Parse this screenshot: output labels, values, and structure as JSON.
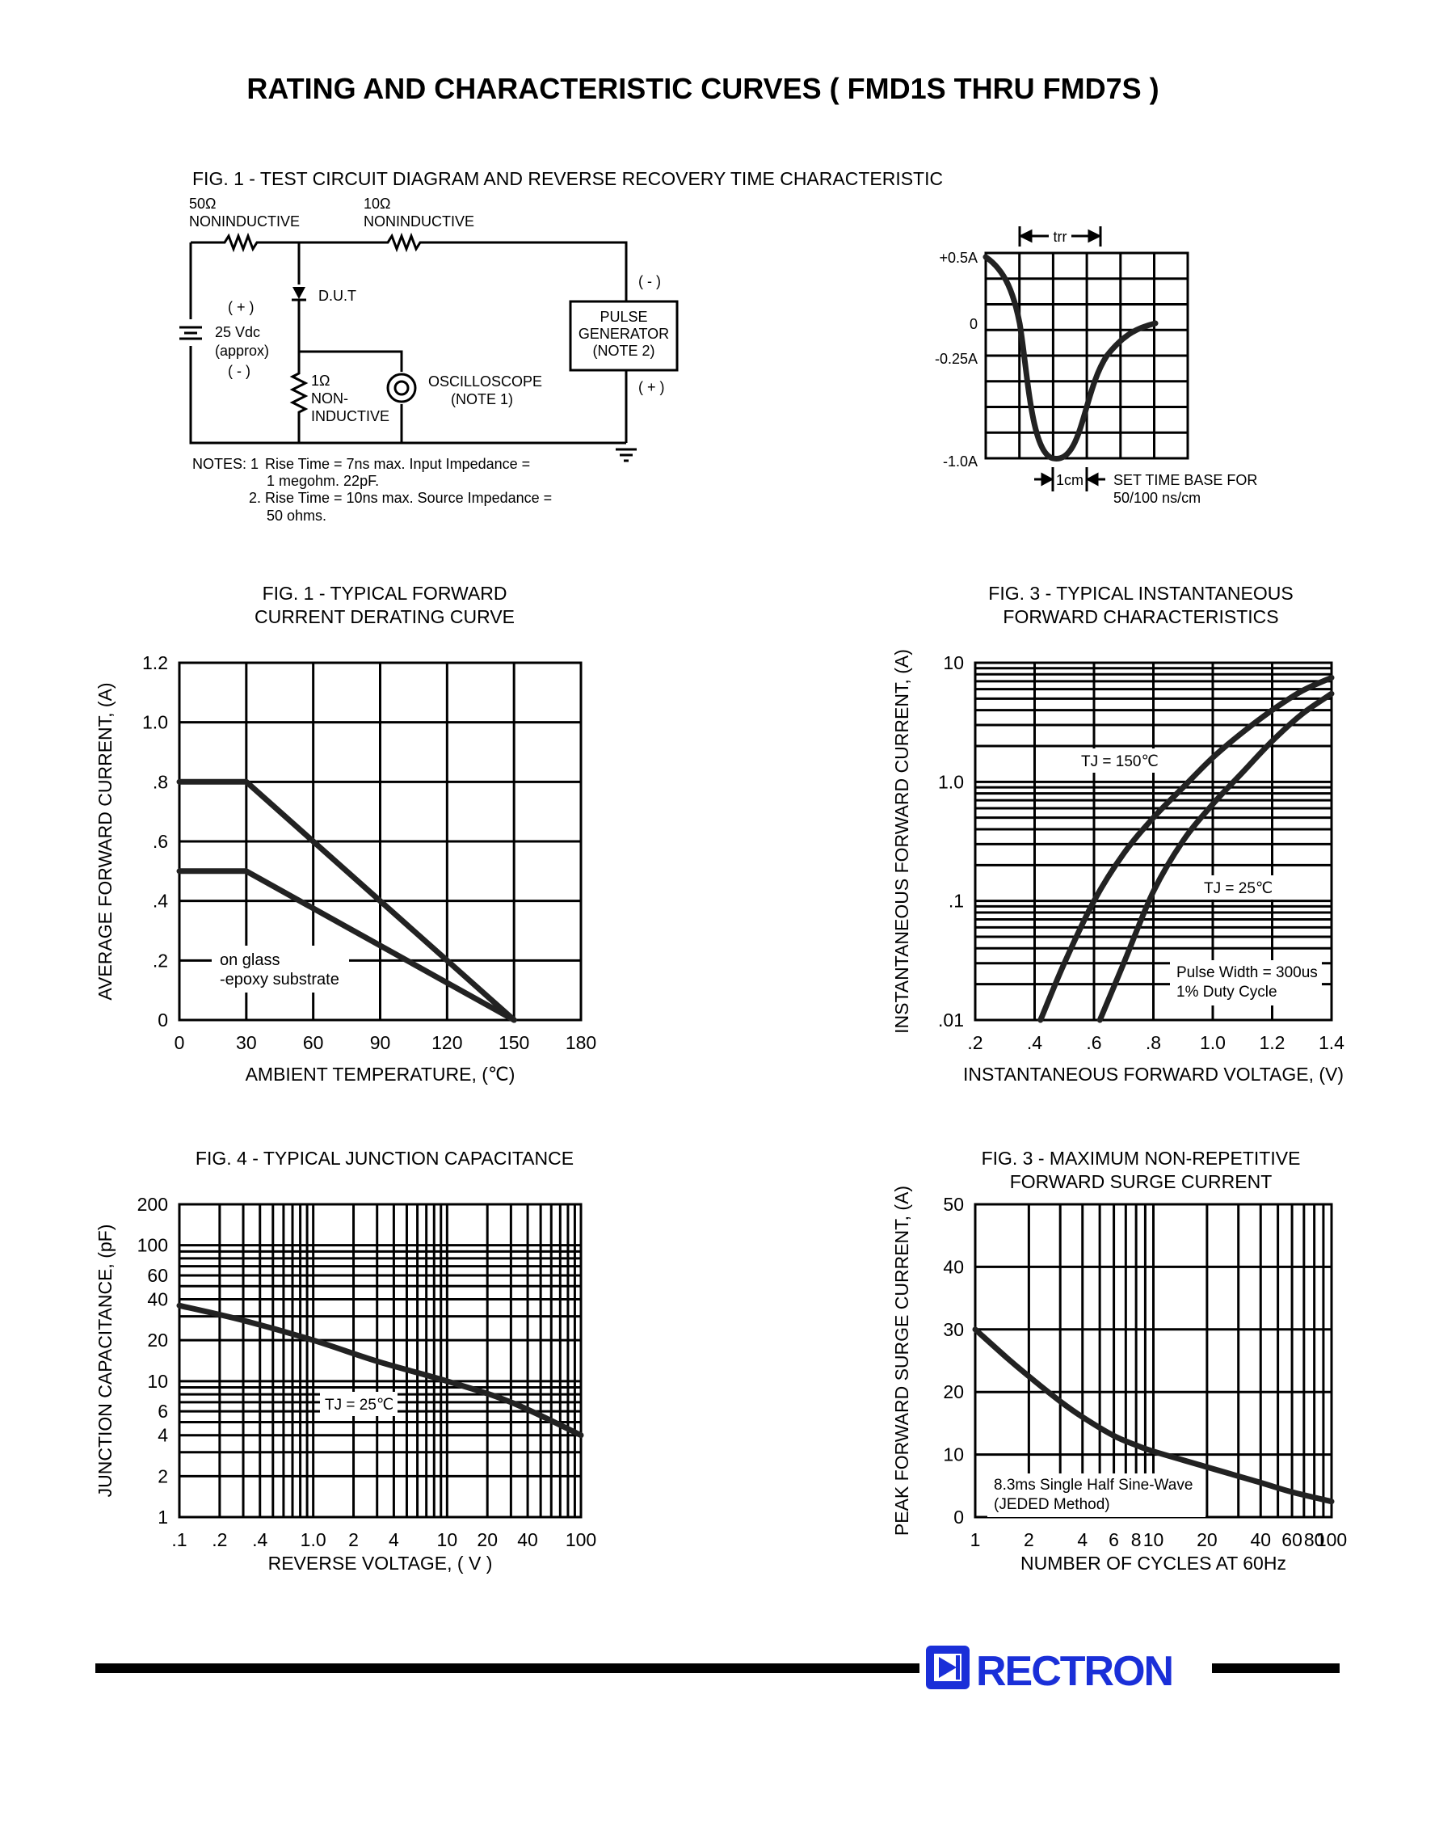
{
  "page": {
    "title": "RATING AND CHARACTERISTIC CURVES ( FMD1S THRU FMD7S )",
    "brand": {
      "name": "RECTRON",
      "color": "#1a2fd8"
    }
  },
  "fig_circuit": {
    "caption": "FIG. 1 - TEST CIRCUIT DIAGRAM  AND REVERSE RECOVERY TIME CHARACTERISTIC",
    "r1_value": "50Ω",
    "r1_type": "NONINDUCTIVE",
    "r2_value": "10Ω",
    "r2_type": "NONINDUCTIVE",
    "dut": "D.U.T",
    "supply_plus": "( + )",
    "supply_value": "25 Vdc",
    "supply_approx": "(approx)",
    "supply_minus": "( - )",
    "r3_value": "1Ω",
    "r3_line1": "NON-",
    "r3_line2": "INDUCTIVE",
    "scope_line1": "OSCILLOSCOPE",
    "scope_line2": "(NOTE 1)",
    "gen_minus": "( - )",
    "gen_plus": "( + )",
    "gen_line1": "PULSE",
    "gen_line2": "GENERATOR",
    "gen_line3": "(NOTE 2)",
    "notes_label": "NOTES: 1",
    "note1_a": "Rise Time = 7ns max. Input Impedance =",
    "note1_b": "1 megohm. 22pF.",
    "note2_a": "2. Rise Time = 10ns max. Source Impedance =",
    "note2_b": "50 ohms."
  },
  "fig_trr": {
    "trr_label": "trr",
    "y_labels": [
      "+0.5A",
      "0",
      "-0.25A",
      "-1.0A"
    ],
    "cm_label": "1cm",
    "timebase_line1": "SET TIME BASE FOR",
    "timebase_line2": "50/100 ns/cm"
  },
  "chart_data": [
    {
      "id": "derating",
      "type": "line",
      "title": "FIG. 1 - TYPICAL FORWARD\nCURRENT DERATING CURVE",
      "title_lines": [
        "FIG. 1 - TYPICAL FORWARD",
        "CURRENT DERATING CURVE"
      ],
      "xlabel": "AMBIENT TEMPERATURE, (℃)",
      "ylabel": "AVERAGE FORWARD  CURRENT, (A)",
      "xlim": [
        0,
        180
      ],
      "ylim": [
        0,
        1.2
      ],
      "x_ticks": [
        "0",
        "30",
        "60",
        "90",
        "120",
        "150",
        "180"
      ],
      "y_ticks": [
        "0",
        ".2",
        ".4",
        ".6",
        ".8",
        "1.0",
        "1.2"
      ],
      "grid": true,
      "annotation_lines": [
        "on glass",
        "-epoxy substrate"
      ],
      "series": [
        {
          "x": [
            0,
            30,
            150
          ],
          "y": [
            0.8,
            0.8,
            0
          ]
        },
        {
          "x": [
            0,
            30,
            150
          ],
          "y": [
            0.5,
            0.5,
            0
          ]
        }
      ]
    },
    {
      "id": "forward",
      "type": "line",
      "title": "FIG. 3 - TYPICAL INSTANTANEOUS\nFORWARD CHARACTERISTICS",
      "title_lines": [
        "FIG. 3 - TYPICAL INSTANTANEOUS",
        "FORWARD CHARACTERISTICS"
      ],
      "xlabel": "INSTANTANEOUS FORWARD VOLTAGE, (V)",
      "ylabel": "INSTANTANEOUS FORWARD CURRENT, (A)",
      "xlim": [
        0.2,
        1.4
      ],
      "ylim": [
        0.01,
        10
      ],
      "y_scale": "log",
      "x_ticks": [
        ".2",
        ".4",
        ".6",
        ".8",
        "1.0",
        "1.2",
        "1.4"
      ],
      "y_ticks": [
        ".01",
        ".1",
        "1.0",
        "10"
      ],
      "grid": true,
      "annotation_lines": [
        "Pulse Width = 300us",
        "1% Duty Cycle"
      ],
      "series": [
        {
          "name": "TJ = 150℃",
          "x": [
            0.42,
            0.5,
            0.6,
            0.7,
            0.8,
            0.9,
            1.0,
            1.1,
            1.2,
            1.3,
            1.4
          ],
          "y": [
            0.01,
            0.03,
            0.1,
            0.25,
            0.5,
            0.9,
            1.6,
            2.6,
            4.0,
            5.8,
            7.5
          ]
        },
        {
          "name": "TJ = 25℃",
          "x": [
            0.62,
            0.7,
            0.8,
            0.9,
            1.0,
            1.1,
            1.2,
            1.3,
            1.4
          ],
          "y": [
            0.01,
            0.03,
            0.12,
            0.32,
            0.65,
            1.2,
            2.2,
            3.7,
            5.5
          ]
        }
      ]
    },
    {
      "id": "capacitance",
      "type": "line",
      "title": "FIG. 4 - TYPICAL JUNCTION CAPACITANCE",
      "title_lines": [
        "FIG. 4 - TYPICAL JUNCTION CAPACITANCE"
      ],
      "xlabel": "REVERSE VOLTAGE, ( V )",
      "ylabel": "JUNCTION CAPACITANCE, (pF)",
      "xlim": [
        0.1,
        100
      ],
      "ylim": [
        1,
        200
      ],
      "x_scale": "log",
      "y_scale": "log",
      "x_ticks": [
        ".1",
        ".2",
        ".4",
        "1.0",
        "2",
        "4",
        "10",
        "20",
        "40",
        "100"
      ],
      "y_ticks": [
        "1",
        "2",
        "4",
        "6",
        "10",
        "20",
        "40",
        "60",
        "100",
        "200"
      ],
      "grid": true,
      "series": [
        {
          "name": "TJ = 25℃",
          "x": [
            0.1,
            0.3,
            1,
            3,
            10,
            30,
            100
          ],
          "y": [
            36,
            28,
            20,
            14,
            10,
            7,
            4
          ]
        }
      ]
    },
    {
      "id": "surge",
      "type": "line",
      "title": "FIG. 3 - MAXIMUM NON-REPETITIVE\nFORWARD SURGE CURRENT",
      "title_lines": [
        "FIG. 3 - MAXIMUM NON-REPETITIVE",
        "FORWARD SURGE CURRENT"
      ],
      "xlabel": "NUMBER OF CYCLES AT 60Hz",
      "ylabel": "PEAK FORWARD SURGE CURRENT, (A)",
      "xlim": [
        1,
        100
      ],
      "ylim": [
        0,
        50
      ],
      "x_scale": "log",
      "x_ticks": [
        "1",
        "2",
        "4",
        "6",
        "8",
        "10",
        "20",
        "40",
        "60",
        "80",
        "100"
      ],
      "y_ticks": [
        "0",
        "10",
        "20",
        "30",
        "40",
        "50"
      ],
      "grid": true,
      "annotation_lines": [
        "8.3ms Single Half Sine-Wave",
        "(JEDED Method)"
      ],
      "series": [
        {
          "x": [
            1,
            1.5,
            2,
            3,
            4,
            6,
            8,
            10,
            20,
            40,
            60,
            100
          ],
          "y": [
            30,
            25.5,
            22.5,
            18.5,
            16,
            13,
            11.5,
            10.5,
            8,
            5.5,
            4,
            2.5
          ]
        }
      ]
    }
  ]
}
